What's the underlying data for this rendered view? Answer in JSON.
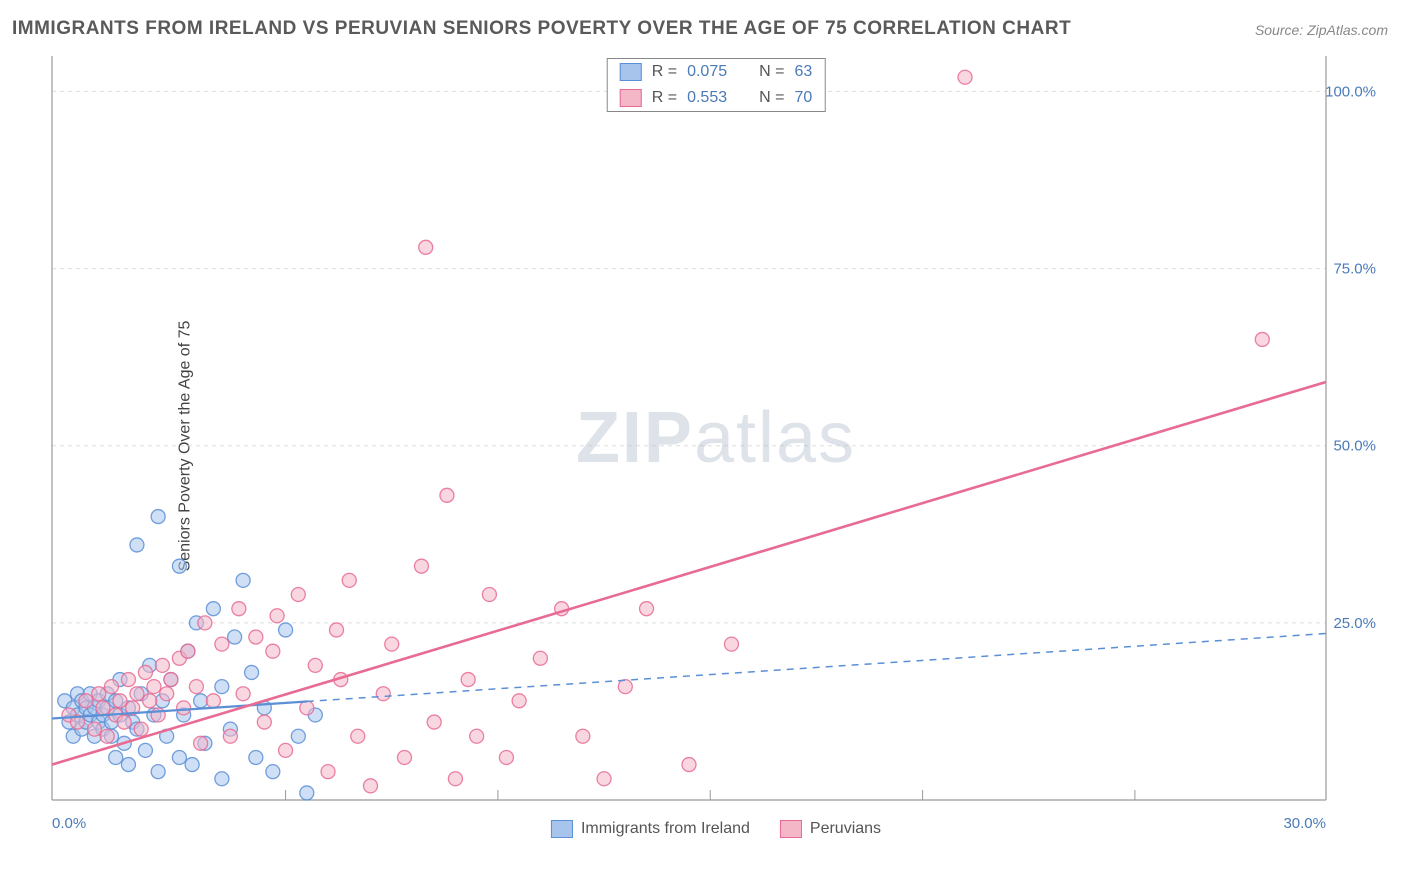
{
  "title": "IMMIGRANTS FROM IRELAND VS PERUVIAN SENIORS POVERTY OVER THE AGE OF 75 CORRELATION CHART",
  "source": "Source: ZipAtlas.com",
  "watermark_bold": "ZIP",
  "watermark_rest": "atlas",
  "chart": {
    "type": "scatter",
    "ylabel": "Seniors Poverty Over the Age of 75",
    "xlim": [
      0,
      30
    ],
    "ylim": [
      0,
      105
    ],
    "xtick_labels": [
      "0.0%",
      "30.0%"
    ],
    "xtick_positions": [
      0,
      30
    ],
    "ytick_labels": [
      "25.0%",
      "50.0%",
      "75.0%",
      "100.0%"
    ],
    "ytick_positions": [
      25,
      50,
      75,
      100
    ],
    "xgrid_positions": [
      5.5,
      10.5,
      15.5,
      20.5,
      25.5
    ],
    "plot_border_color": "#999999",
    "grid_color": "#dddddd",
    "grid_dash": "4,4",
    "background_color": "#ffffff",
    "marker_radius": 7,
    "marker_opacity": 0.55,
    "marker_stroke_width": 1.3,
    "series": [
      {
        "name": "Immigrants from Ireland",
        "fill": "#a7c5ec",
        "stroke": "#5b8fd6",
        "r": "0.075",
        "n": "63",
        "trend": {
          "x1": 0,
          "y1": 11.5,
          "x2": 6,
          "y2": 12.3,
          "x2b": 30,
          "y2b": 23.5,
          "solid_until": 6,
          "width": 2.2
        },
        "points": [
          [
            0.3,
            14
          ],
          [
            0.4,
            11
          ],
          [
            0.5,
            13
          ],
          [
            0.5,
            9
          ],
          [
            0.6,
            15
          ],
          [
            0.6,
            12
          ],
          [
            0.7,
            10
          ],
          [
            0.7,
            14
          ],
          [
            0.8,
            11
          ],
          [
            0.8,
            13
          ],
          [
            0.9,
            12
          ],
          [
            0.9,
            15
          ],
          [
            1.0,
            9
          ],
          [
            1.0,
            13
          ],
          [
            1.1,
            11
          ],
          [
            1.1,
            14
          ],
          [
            1.2,
            12
          ],
          [
            1.2,
            10
          ],
          [
            1.3,
            13
          ],
          [
            1.3,
            15
          ],
          [
            1.4,
            11
          ],
          [
            1.4,
            9
          ],
          [
            1.5,
            14
          ],
          [
            1.5,
            6
          ],
          [
            1.6,
            12
          ],
          [
            1.6,
            17
          ],
          [
            1.7,
            8
          ],
          [
            1.8,
            13
          ],
          [
            1.8,
            5
          ],
          [
            1.9,
            11
          ],
          [
            2.0,
            36
          ],
          [
            2.0,
            10
          ],
          [
            2.1,
            15
          ],
          [
            2.2,
            7
          ],
          [
            2.3,
            19
          ],
          [
            2.4,
            12
          ],
          [
            2.5,
            40
          ],
          [
            2.5,
            4
          ],
          [
            2.6,
            14
          ],
          [
            2.7,
            9
          ],
          [
            2.8,
            17
          ],
          [
            3.0,
            6
          ],
          [
            3.0,
            33
          ],
          [
            3.1,
            12
          ],
          [
            3.2,
            21
          ],
          [
            3.3,
            5
          ],
          [
            3.5,
            14
          ],
          [
            3.6,
            8
          ],
          [
            3.8,
            27
          ],
          [
            4.0,
            3
          ],
          [
            4.0,
            16
          ],
          [
            4.2,
            10
          ],
          [
            4.5,
            31
          ],
          [
            4.8,
            6
          ],
          [
            5.0,
            13
          ],
          [
            5.2,
            4
          ],
          [
            5.5,
            24
          ],
          [
            5.8,
            9
          ],
          [
            6.0,
            1
          ],
          [
            6.2,
            12
          ],
          [
            3.4,
            25
          ],
          [
            4.3,
            23
          ],
          [
            4.7,
            18
          ]
        ]
      },
      {
        "name": "Peruvians",
        "fill": "#f4b7c8",
        "stroke": "#e86b94",
        "r": "0.553",
        "n": "70",
        "trend": {
          "x1": 0,
          "y1": 5,
          "x2": 30,
          "y2": 59,
          "solid_until": 30,
          "width": 2.6
        },
        "points": [
          [
            0.4,
            12
          ],
          [
            0.6,
            11
          ],
          [
            0.8,
            14
          ],
          [
            1.0,
            10
          ],
          [
            1.1,
            15
          ],
          [
            1.2,
            13
          ],
          [
            1.3,
            9
          ],
          [
            1.4,
            16
          ],
          [
            1.5,
            12
          ],
          [
            1.6,
            14
          ],
          [
            1.7,
            11
          ],
          [
            1.8,
            17
          ],
          [
            1.9,
            13
          ],
          [
            2.0,
            15
          ],
          [
            2.1,
            10
          ],
          [
            2.2,
            18
          ],
          [
            2.3,
            14
          ],
          [
            2.4,
            16
          ],
          [
            2.5,
            12
          ],
          [
            2.6,
            19
          ],
          [
            2.7,
            15
          ],
          [
            2.8,
            17
          ],
          [
            3.0,
            20
          ],
          [
            3.1,
            13
          ],
          [
            3.2,
            21
          ],
          [
            3.4,
            16
          ],
          [
            3.5,
            8
          ],
          [
            3.6,
            25
          ],
          [
            3.8,
            14
          ],
          [
            4.0,
            22
          ],
          [
            4.2,
            9
          ],
          [
            4.4,
            27
          ],
          [
            4.5,
            15
          ],
          [
            4.8,
            23
          ],
          [
            5.0,
            11
          ],
          [
            5.2,
            21
          ],
          [
            5.5,
            7
          ],
          [
            5.8,
            29
          ],
          [
            6.0,
            13
          ],
          [
            6.2,
            19
          ],
          [
            6.5,
            4
          ],
          [
            6.8,
            17
          ],
          [
            7.0,
            31
          ],
          [
            7.2,
            9
          ],
          [
            7.5,
            2
          ],
          [
            7.8,
            15
          ],
          [
            8.0,
            22
          ],
          [
            8.3,
            6
          ],
          [
            8.7,
            33
          ],
          [
            9.0,
            11
          ],
          [
            9.3,
            43
          ],
          [
            9.5,
            3
          ],
          [
            9.8,
            17
          ],
          [
            10.0,
            9
          ],
          [
            10.3,
            29
          ],
          [
            10.7,
            6
          ],
          [
            11.0,
            14
          ],
          [
            11.5,
            20
          ],
          [
            12.0,
            27
          ],
          [
            12.5,
            9
          ],
          [
            13.0,
            3
          ],
          [
            13.5,
            16
          ],
          [
            14.0,
            27
          ],
          [
            15.0,
            5
          ],
          [
            16.0,
            22
          ],
          [
            8.8,
            78
          ],
          [
            21.5,
            102
          ],
          [
            28.5,
            65
          ],
          [
            5.3,
            26
          ],
          [
            6.7,
            24
          ]
        ]
      }
    ],
    "legend_bottom": [
      {
        "label": "Immigrants from Ireland",
        "fill": "#a7c5ec",
        "stroke": "#5b8fd6"
      },
      {
        "label": "Peruvians",
        "fill": "#f4b7c8",
        "stroke": "#e86b94"
      }
    ]
  }
}
